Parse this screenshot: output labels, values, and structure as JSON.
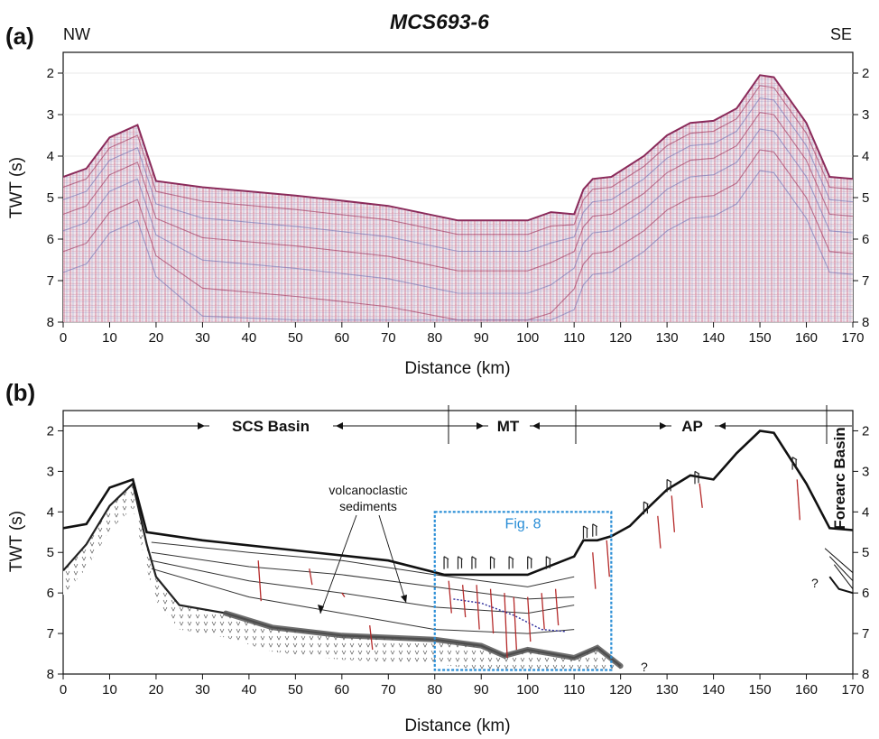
{
  "figure": {
    "title": "MCS693-6",
    "direction_left": "NW",
    "direction_right": "SE"
  },
  "panel_a": {
    "label": "(a)",
    "xlabel": "Distance (km)",
    "ylabel": "TWT (s)",
    "x_ticks": [
      "0",
      "10",
      "20",
      "30",
      "40",
      "50",
      "60",
      "70",
      "80",
      "90",
      "100",
      "110",
      "120",
      "130",
      "140",
      "150",
      "160",
      "170"
    ],
    "y_ticks": [
      "2",
      "3",
      "4",
      "5",
      "6",
      "7",
      "8"
    ],
    "seafloor_profile": [
      [
        0,
        4.5
      ],
      [
        5,
        4.3
      ],
      [
        10,
        3.55
      ],
      [
        16,
        3.25
      ],
      [
        20,
        4.6
      ],
      [
        30,
        4.75
      ],
      [
        50,
        4.95
      ],
      [
        70,
        5.2
      ],
      [
        85,
        5.55
      ],
      [
        100,
        5.55
      ],
      [
        105,
        5.35
      ],
      [
        110,
        5.4
      ],
      [
        112,
        4.8
      ],
      [
        114,
        4.55
      ],
      [
        118,
        4.5
      ],
      [
        125,
        4.0
      ],
      [
        130,
        3.5
      ],
      [
        135,
        3.2
      ],
      [
        140,
        3.15
      ],
      [
        145,
        2.85
      ],
      [
        150,
        2.05
      ],
      [
        153,
        2.1
      ],
      [
        160,
        3.2
      ],
      [
        165,
        4.5
      ],
      [
        170,
        4.55
      ]
    ],
    "colors": {
      "seismic_red": "#c0254f",
      "seismic_blue": "#6d6fb4",
      "background": "#f3eef3"
    }
  },
  "panel_b": {
    "label": "(b)",
    "xlabel": "Distance (km)",
    "ylabel": "TWT (s)",
    "x_ticks": [
      "0",
      "10",
      "20",
      "30",
      "40",
      "50",
      "60",
      "70",
      "80",
      "90",
      "100",
      "110",
      "120",
      "130",
      "140",
      "150",
      "160",
      "170"
    ],
    "y_ticks": [
      "2",
      "3",
      "4",
      "5",
      "6",
      "7",
      "8"
    ],
    "provinces": [
      {
        "label": "SCS Basin",
        "x_from": 0,
        "x_to": 83
      },
      {
        "label": "MT",
        "x_from": 83,
        "x_to": 110
      },
      {
        "label": "AP",
        "x_from": 110,
        "x_to": 165
      },
      {
        "label": "Forearc Basin",
        "x_from": 165,
        "x_to": 170
      }
    ],
    "annotation": {
      "line1": "volcanoclastic",
      "line2": "sediments"
    },
    "inset_box": {
      "label": "Fig. 8",
      "x_from": 80,
      "x_to": 118,
      "y_from": 4.0,
      "y_to": 7.9
    },
    "question_marks": [
      "?",
      "?"
    ],
    "seafloor": [
      [
        0,
        4.4
      ],
      [
        5,
        4.3
      ],
      [
        10,
        3.4
      ],
      [
        15,
        3.2
      ],
      [
        18,
        4.5
      ],
      [
        30,
        4.7
      ],
      [
        50,
        4.95
      ],
      [
        70,
        5.2
      ],
      [
        82,
        5.55
      ],
      [
        100,
        5.55
      ],
      [
        110,
        5.1
      ],
      [
        112,
        4.7
      ],
      [
        115,
        4.7
      ],
      [
        118,
        4.6
      ],
      [
        122,
        4.35
      ],
      [
        125,
        4.0
      ],
      [
        130,
        3.45
      ],
      [
        135,
        3.1
      ],
      [
        140,
        3.2
      ],
      [
        145,
        2.55
      ],
      [
        150,
        2.0
      ],
      [
        153,
        2.05
      ],
      [
        160,
        3.3
      ],
      [
        165,
        4.4
      ],
      [
        170,
        4.45
      ]
    ],
    "basement": [
      [
        0,
        5.45
      ],
      [
        5,
        4.8
      ],
      [
        10,
        3.85
      ],
      [
        15,
        3.3
      ],
      [
        18,
        4.8
      ],
      [
        20,
        5.6
      ],
      [
        25,
        6.3
      ],
      [
        35,
        6.5
      ],
      [
        45,
        6.85
      ],
      [
        60,
        7.05
      ],
      [
        80,
        7.15
      ],
      [
        90,
        7.3
      ],
      [
        95,
        7.55
      ],
      [
        100,
        7.4
      ],
      [
        110,
        7.6
      ],
      [
        115,
        7.35
      ],
      [
        120,
        7.8
      ]
    ],
    "intra_layers": [
      [
        [
          19,
          4.75
        ],
        [
          40,
          5.0
        ],
        [
          60,
          5.2
        ],
        [
          80,
          5.55
        ],
        [
          100,
          5.85
        ],
        [
          110,
          5.6
        ]
      ],
      [
        [
          19,
          5.0
        ],
        [
          40,
          5.35
        ],
        [
          60,
          5.55
        ],
        [
          80,
          5.85
        ],
        [
          100,
          6.15
        ],
        [
          110,
          6.1
        ]
      ],
      [
        [
          19,
          5.2
        ],
        [
          40,
          5.7
        ],
        [
          60,
          6.0
        ],
        [
          80,
          6.35
        ],
        [
          100,
          6.5
        ],
        [
          110,
          6.3
        ]
      ],
      [
        [
          19,
          5.4
        ],
        [
          40,
          6.1
        ],
        [
          60,
          6.5
        ],
        [
          80,
          6.9
        ],
        [
          100,
          7.0
        ],
        [
          110,
          6.9
        ]
      ]
    ],
    "colors": {
      "fault_red": "#b52a2a",
      "inset_blue": "#2a8ed6",
      "horizon_blue": "#2a2a9a"
    }
  }
}
